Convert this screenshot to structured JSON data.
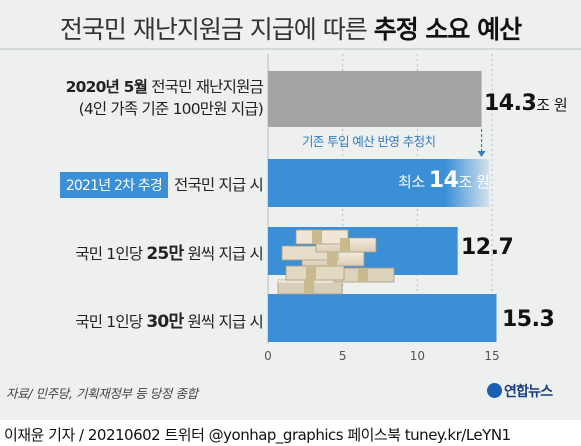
{
  "title_prefix": "전국민 재난지원금 지급에 따른 ",
  "title_bold": "추정 소요 예산",
  "chart_data": {
    "type": "bar",
    "orientation": "horizontal",
    "xlim": [
      0,
      15
    ],
    "ticks": [
      0,
      5,
      10,
      15
    ],
    "categories": [
      "2020년 5월 전국민 재난지원금 (4인 가족 기준 100만원 지급)",
      "2021년 2차 추경 전국민 지급 시",
      "국민 1인당 25만 원씩 지급 시",
      "국민 1인당 30만 원씩 지급 시"
    ],
    "values": [
      14.3,
      14,
      12.7,
      15.3
    ],
    "bar_colors": [
      "#a3a5a4",
      "#3a8fd6",
      "#3a8fd6",
      "#3a8fd6"
    ],
    "value_labels": [
      "14.3",
      "14",
      "12.7",
      "15.3"
    ],
    "value_units": [
      "조 원",
      "조 원",
      "",
      ""
    ],
    "value_prefix": [
      "",
      "최소 ",
      "",
      ""
    ],
    "annotation": "기존 투입 예산 반영 추정치"
  },
  "labels": {
    "row1_line1_bold": "2020년 5월",
    "row1_line1_rest": " 전국민 재난지원금",
    "row1_line2": "(4인 가족 기준 100만원 지급)",
    "row2_badge": "2021년 2차 추경",
    "row2_rest": "전국민 지급 시",
    "row3_pre": "국민 1인당 ",
    "row3_bold": "25만",
    "row3_post": " 원씩 지급 시",
    "row4_pre": "국민 1인당 ",
    "row4_bold": "30만",
    "row4_post": " 원씩 지급 시"
  },
  "values_text": {
    "v1_num": "14.3",
    "v1_unit": "조 원",
    "v2_prefix": "최소 ",
    "v2_num": "14",
    "v2_unit": "조 원",
    "v3_num": "12.7",
    "v4_num": "15.3"
  },
  "source": "자료/ 민주당, 기획재정부 등 당정 종합",
  "logo": "연합뉴스",
  "footer": "이재윤 기자 / 20210602  트위터 @yonhap_graphics  페이스북 tuney.kr/LeYN1",
  "colors": {
    "accent": "#3a8fd6",
    "gray_bar": "#a3a5a4",
    "background": "#eef0ef"
  },
  "icon": "money-bundles-icon"
}
